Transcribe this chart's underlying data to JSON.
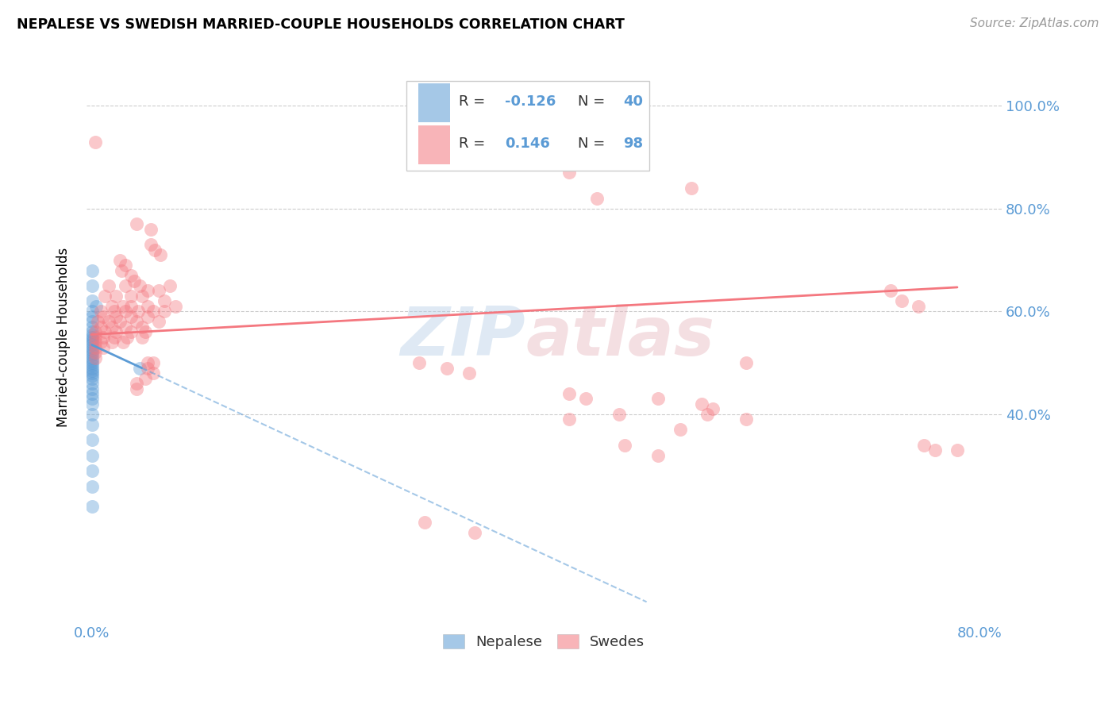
{
  "title": "NEPALESE VS SWEDISH MARRIED-COUPLE HOUSEHOLDS CORRELATION CHART",
  "source": "Source: ZipAtlas.com",
  "tick_color": "#5b9bd5",
  "ylabel": "Married-couple Households",
  "nepalese_color": "#5b9bd5",
  "swedes_color": "#f4777f",
  "nepalese_R": -0.126,
  "nepalese_N": 40,
  "swedes_R": 0.146,
  "swedes_N": 98,
  "x_max": 0.8,
  "y_ticks": [
    0.4,
    0.6,
    0.8,
    1.0
  ],
  "y_tick_labels": [
    "40.0%",
    "60.0%",
    "80.0%",
    "100.0%"
  ],
  "nepalese_points": [
    [
      0.0,
      0.68
    ],
    [
      0.0,
      0.65
    ],
    [
      0.0,
      0.62
    ],
    [
      0.0,
      0.6
    ],
    [
      0.0,
      0.59
    ],
    [
      0.0,
      0.58
    ],
    [
      0.0,
      0.57
    ],
    [
      0.0,
      0.56
    ],
    [
      0.0,
      0.555
    ],
    [
      0.0,
      0.55
    ],
    [
      0.0,
      0.545
    ],
    [
      0.0,
      0.54
    ],
    [
      0.0,
      0.535
    ],
    [
      0.0,
      0.53
    ],
    [
      0.0,
      0.525
    ],
    [
      0.0,
      0.52
    ],
    [
      0.0,
      0.515
    ],
    [
      0.0,
      0.51
    ],
    [
      0.0,
      0.505
    ],
    [
      0.0,
      0.5
    ],
    [
      0.0,
      0.495
    ],
    [
      0.0,
      0.49
    ],
    [
      0.0,
      0.485
    ],
    [
      0.0,
      0.48
    ],
    [
      0.0,
      0.475
    ],
    [
      0.0,
      0.47
    ],
    [
      0.0,
      0.46
    ],
    [
      0.0,
      0.45
    ],
    [
      0.0,
      0.44
    ],
    [
      0.0,
      0.43
    ],
    [
      0.0,
      0.42
    ],
    [
      0.0,
      0.4
    ],
    [
      0.0,
      0.38
    ],
    [
      0.0,
      0.35
    ],
    [
      0.0,
      0.32
    ],
    [
      0.0,
      0.29
    ],
    [
      0.0,
      0.26
    ],
    [
      0.0,
      0.22
    ],
    [
      0.043,
      0.49
    ],
    [
      0.004,
      0.61
    ]
  ],
  "swedes_points": [
    [
      0.003,
      0.93
    ],
    [
      0.04,
      0.77
    ],
    [
      0.053,
      0.76
    ],
    [
      0.053,
      0.73
    ],
    [
      0.057,
      0.72
    ],
    [
      0.062,
      0.71
    ],
    [
      0.025,
      0.7
    ],
    [
      0.03,
      0.69
    ],
    [
      0.027,
      0.68
    ],
    [
      0.035,
      0.67
    ],
    [
      0.038,
      0.66
    ],
    [
      0.015,
      0.65
    ],
    [
      0.03,
      0.65
    ],
    [
      0.043,
      0.65
    ],
    [
      0.07,
      0.65
    ],
    [
      0.05,
      0.64
    ],
    [
      0.06,
      0.64
    ],
    [
      0.012,
      0.63
    ],
    [
      0.022,
      0.63
    ],
    [
      0.035,
      0.63
    ],
    [
      0.045,
      0.63
    ],
    [
      0.065,
      0.62
    ],
    [
      0.018,
      0.61
    ],
    [
      0.028,
      0.61
    ],
    [
      0.035,
      0.61
    ],
    [
      0.05,
      0.61
    ],
    [
      0.075,
      0.61
    ],
    [
      0.008,
      0.6
    ],
    [
      0.02,
      0.6
    ],
    [
      0.03,
      0.6
    ],
    [
      0.042,
      0.6
    ],
    [
      0.055,
      0.6
    ],
    [
      0.065,
      0.6
    ],
    [
      0.01,
      0.59
    ],
    [
      0.022,
      0.59
    ],
    [
      0.035,
      0.59
    ],
    [
      0.05,
      0.59
    ],
    [
      0.005,
      0.58
    ],
    [
      0.015,
      0.58
    ],
    [
      0.025,
      0.58
    ],
    [
      0.04,
      0.58
    ],
    [
      0.06,
      0.58
    ],
    [
      0.008,
      0.57
    ],
    [
      0.018,
      0.57
    ],
    [
      0.03,
      0.57
    ],
    [
      0.045,
      0.57
    ],
    [
      0.003,
      0.56
    ],
    [
      0.012,
      0.56
    ],
    [
      0.022,
      0.56
    ],
    [
      0.035,
      0.56
    ],
    [
      0.048,
      0.56
    ],
    [
      0.003,
      0.55
    ],
    [
      0.01,
      0.55
    ],
    [
      0.02,
      0.55
    ],
    [
      0.032,
      0.55
    ],
    [
      0.045,
      0.55
    ],
    [
      0.003,
      0.54
    ],
    [
      0.008,
      0.54
    ],
    [
      0.018,
      0.54
    ],
    [
      0.028,
      0.54
    ],
    [
      0.003,
      0.53
    ],
    [
      0.01,
      0.53
    ],
    [
      0.003,
      0.52
    ],
    [
      0.003,
      0.51
    ],
    [
      0.05,
      0.5
    ],
    [
      0.055,
      0.5
    ],
    [
      0.05,
      0.49
    ],
    [
      0.055,
      0.48
    ],
    [
      0.048,
      0.47
    ],
    [
      0.04,
      0.46
    ],
    [
      0.04,
      0.45
    ],
    [
      0.43,
      0.87
    ],
    [
      0.54,
      0.84
    ],
    [
      0.455,
      0.82
    ],
    [
      0.295,
      0.5
    ],
    [
      0.32,
      0.49
    ],
    [
      0.34,
      0.48
    ],
    [
      0.43,
      0.44
    ],
    [
      0.445,
      0.43
    ],
    [
      0.51,
      0.43
    ],
    [
      0.55,
      0.42
    ],
    [
      0.56,
      0.41
    ],
    [
      0.475,
      0.4
    ],
    [
      0.555,
      0.4
    ],
    [
      0.43,
      0.39
    ],
    [
      0.59,
      0.39
    ],
    [
      0.53,
      0.37
    ],
    [
      0.48,
      0.34
    ],
    [
      0.51,
      0.32
    ],
    [
      0.72,
      0.64
    ],
    [
      0.73,
      0.62
    ],
    [
      0.745,
      0.61
    ],
    [
      0.59,
      0.5
    ],
    [
      0.3,
      0.19
    ],
    [
      0.345,
      0.17
    ],
    [
      0.75,
      0.34
    ],
    [
      0.76,
      0.33
    ],
    [
      0.78,
      0.33
    ]
  ]
}
